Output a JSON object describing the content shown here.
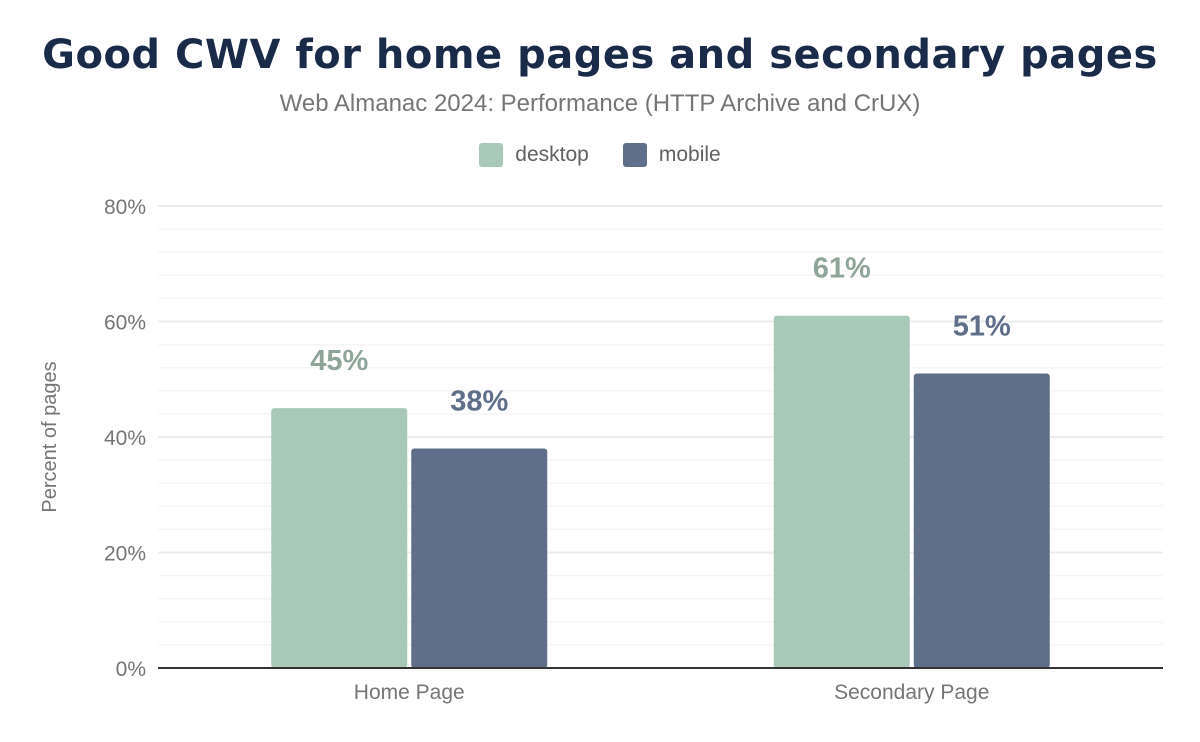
{
  "chart_data": {
    "type": "bar",
    "title": "Good CWV for home pages and secondary pages",
    "subtitle": "Web Almanac 2024: Performance (HTTP Archive and CrUX)",
    "xlabel": "",
    "ylabel": "Percent of pages",
    "categories": [
      "Home Page",
      "Secondary Page"
    ],
    "series": [
      {
        "name": "desktop",
        "values": [
          45,
          61
        ],
        "labels": [
          "45%",
          "61%"
        ],
        "color": "#a8c9b8",
        "label_color": "#8fa59a"
      },
      {
        "name": "mobile",
        "values": [
          38,
          51
        ],
        "labels": [
          "38%",
          "51%"
        ],
        "color": "#5f6f89",
        "label_color": "#5f6f89"
      }
    ],
    "ylim": [
      0,
      80
    ],
    "yticks": [
      0,
      20,
      40,
      60,
      80
    ],
    "ytick_labels": [
      "0%",
      "20%",
      "40%",
      "60%",
      "80%"
    ],
    "grid": true,
    "legend_position": "top-center"
  }
}
